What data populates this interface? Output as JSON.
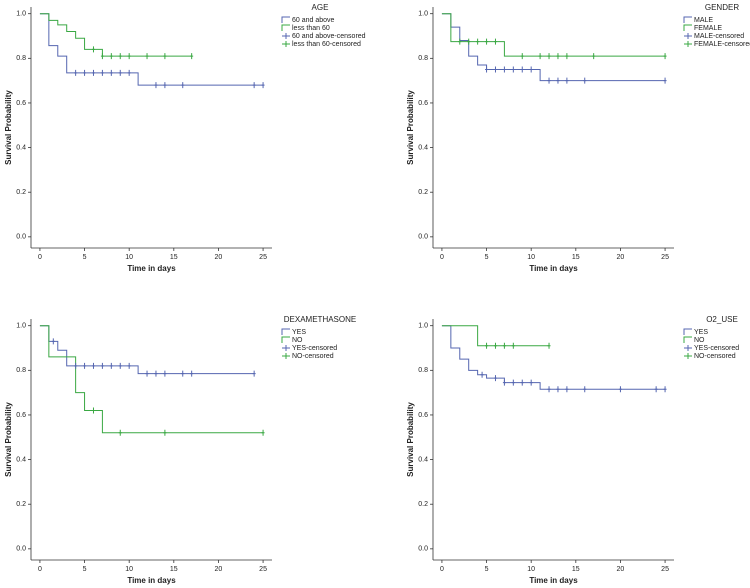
{
  "chart_data": [
    {
      "type": "step",
      "legend_title": "AGE",
      "xlabel": "Time in days",
      "ylabel": "Survival Probability",
      "xlim": [
        -1,
        26
      ],
      "ylim": [
        -0.05,
        1.03
      ],
      "xticks": [
        0,
        5,
        10,
        15,
        20,
        25
      ],
      "yticks": [
        {
          "value": 0,
          "label": "0.0"
        },
        0.2,
        0.4,
        0.6,
        0.8,
        {
          "value": 1,
          "label": "1.0"
        }
      ],
      "series": [
        {
          "name": "60 and above",
          "style": "step",
          "color": "#5566b0",
          "x": [
            0,
            1,
            2,
            3,
            11,
            25
          ],
          "values": [
            1,
            0.857,
            0.81,
            0.735,
            0.68,
            0.68
          ]
        },
        {
          "name": "less than 60",
          "style": "step",
          "color": "#3aa843",
          "x": [
            0,
            1,
            2,
            3,
            4,
            5,
            7,
            17
          ],
          "values": [
            1,
            0.97,
            0.95,
            0.92,
            0.89,
            0.84,
            0.81,
            0.81
          ]
        },
        {
          "name": "60 and above-censored",
          "style": "censored",
          "color": "#5566b0",
          "x": [
            4,
            5,
            6,
            7,
            8,
            9,
            10,
            13,
            14,
            16,
            24,
            25
          ],
          "values": [
            0.735,
            0.735,
            0.735,
            0.735,
            0.735,
            0.735,
            0.735,
            0.68,
            0.68,
            0.68,
            0.68,
            0.68
          ]
        },
        {
          "name": "less than 60-censored",
          "style": "censored",
          "color": "#3aa843",
          "x": [
            6,
            7,
            8,
            9,
            10,
            12,
            14,
            17
          ],
          "values": [
            0.84,
            0.81,
            0.81,
            0.81,
            0.81,
            0.81,
            0.81,
            0.81
          ]
        }
      ]
    },
    {
      "type": "step",
      "legend_title": "GENDER",
      "xlabel": "Time in days",
      "ylabel": "Survival Probability",
      "xlim": [
        -1,
        26
      ],
      "ylim": [
        -0.05,
        1.03
      ],
      "xticks": [
        0,
        5,
        10,
        15,
        20,
        25
      ],
      "yticks": [
        {
          "value": 0,
          "label": "0.0"
        },
        0.2,
        0.4,
        0.6,
        0.8,
        {
          "value": 1,
          "label": "1.0"
        }
      ],
      "series": [
        {
          "name": "MALE",
          "style": "step",
          "color": "#5566b0",
          "x": [
            0,
            1,
            2,
            3,
            4,
            5,
            11,
            25
          ],
          "values": [
            1,
            0.94,
            0.88,
            0.81,
            0.77,
            0.75,
            0.7,
            0.7
          ]
        },
        {
          "name": "FEMALE",
          "style": "step",
          "color": "#3aa843",
          "x": [
            0,
            1,
            7,
            25
          ],
          "values": [
            1,
            0.875,
            0.81,
            0.81
          ]
        },
        {
          "name": "MALE-censored",
          "style": "censored",
          "color": "#5566b0",
          "x": [
            5,
            6,
            7,
            8,
            9,
            10,
            12,
            13,
            14,
            16,
            25
          ],
          "values": [
            0.75,
            0.75,
            0.75,
            0.75,
            0.75,
            0.75,
            0.7,
            0.7,
            0.7,
            0.7,
            0.7
          ]
        },
        {
          "name": "FEMALE-censored",
          "style": "censored",
          "color": "#3aa843",
          "x": [
            2,
            3,
            4,
            5,
            6,
            9,
            11,
            12,
            13,
            14,
            17,
            25
          ],
          "values": [
            0.875,
            0.875,
            0.875,
            0.875,
            0.875,
            0.81,
            0.81,
            0.81,
            0.81,
            0.81,
            0.81,
            0.81
          ]
        }
      ]
    },
    {
      "type": "step",
      "legend_title": "DEXAMETHASONE",
      "xlabel": "Time in days",
      "ylabel": "Survival Probability",
      "xlim": [
        -1,
        26
      ],
      "ylim": [
        -0.05,
        1.03
      ],
      "xticks": [
        0,
        5,
        10,
        15,
        20,
        25
      ],
      "yticks": [
        {
          "value": 0,
          "label": "0.0"
        },
        0.2,
        0.4,
        0.6,
        0.8,
        {
          "value": 1,
          "label": "1.0"
        }
      ],
      "series": [
        {
          "name": "YES",
          "style": "step",
          "color": "#5566b0",
          "x": [
            0,
            1,
            2,
            3,
            11,
            24
          ],
          "values": [
            1,
            0.93,
            0.89,
            0.82,
            0.785,
            0.785
          ]
        },
        {
          "name": "NO",
          "style": "step",
          "color": "#3aa843",
          "x": [
            0,
            1,
            4,
            5,
            7,
            25
          ],
          "values": [
            1,
            0.86,
            0.7,
            0.62,
            0.52,
            0.52
          ]
        },
        {
          "name": "YES-censored",
          "style": "censored",
          "color": "#5566b0",
          "x": [
            1.5,
            4,
            5,
            6,
            7,
            8,
            9,
            10,
            12,
            13,
            14,
            16,
            17,
            24
          ],
          "values": [
            0.93,
            0.82,
            0.82,
            0.82,
            0.82,
            0.82,
            0.82,
            0.82,
            0.785,
            0.785,
            0.785,
            0.785,
            0.785,
            0.785
          ]
        },
        {
          "name": "NO-censored",
          "style": "censored",
          "color": "#3aa843",
          "x": [
            6,
            9,
            14,
            25
          ],
          "values": [
            0.62,
            0.52,
            0.52,
            0.52
          ]
        }
      ]
    },
    {
      "type": "step",
      "legend_title": "O2_USE",
      "xlabel": "Time in days",
      "ylabel": "Survival Probability",
      "xlim": [
        -1,
        26
      ],
      "ylim": [
        -0.05,
        1.03
      ],
      "xticks": [
        0,
        5,
        10,
        15,
        20,
        25
      ],
      "yticks": [
        {
          "value": 0,
          "label": "0.0"
        },
        0.2,
        0.4,
        0.6,
        0.8,
        {
          "value": 1,
          "label": "1.0"
        }
      ],
      "series": [
        {
          "name": "YES",
          "style": "step",
          "color": "#5566b0",
          "x": [
            0,
            1,
            2,
            3,
            4,
            5,
            7,
            11,
            25
          ],
          "values": [
            1,
            0.9,
            0.85,
            0.8,
            0.78,
            0.765,
            0.745,
            0.715,
            0.715
          ]
        },
        {
          "name": "NO",
          "style": "step",
          "color": "#3aa843",
          "x": [
            0,
            4,
            12
          ],
          "values": [
            1,
            0.91,
            0.91
          ]
        },
        {
          "name": "YES-censored",
          "style": "censored",
          "color": "#5566b0",
          "x": [
            4.5,
            6,
            7,
            8,
            9,
            10,
            12,
            13,
            14,
            16,
            20,
            24,
            25
          ],
          "values": [
            0.78,
            0.765,
            0.745,
            0.745,
            0.745,
            0.745,
            0.715,
            0.715,
            0.715,
            0.715,
            0.715,
            0.715,
            0.715
          ]
        },
        {
          "name": "NO-censored",
          "style": "censored",
          "color": "#3aa843",
          "x": [
            5,
            6,
            7,
            8,
            12
          ],
          "values": [
            0.91,
            0.91,
            0.91,
            0.91,
            0.91
          ]
        }
      ]
    }
  ]
}
